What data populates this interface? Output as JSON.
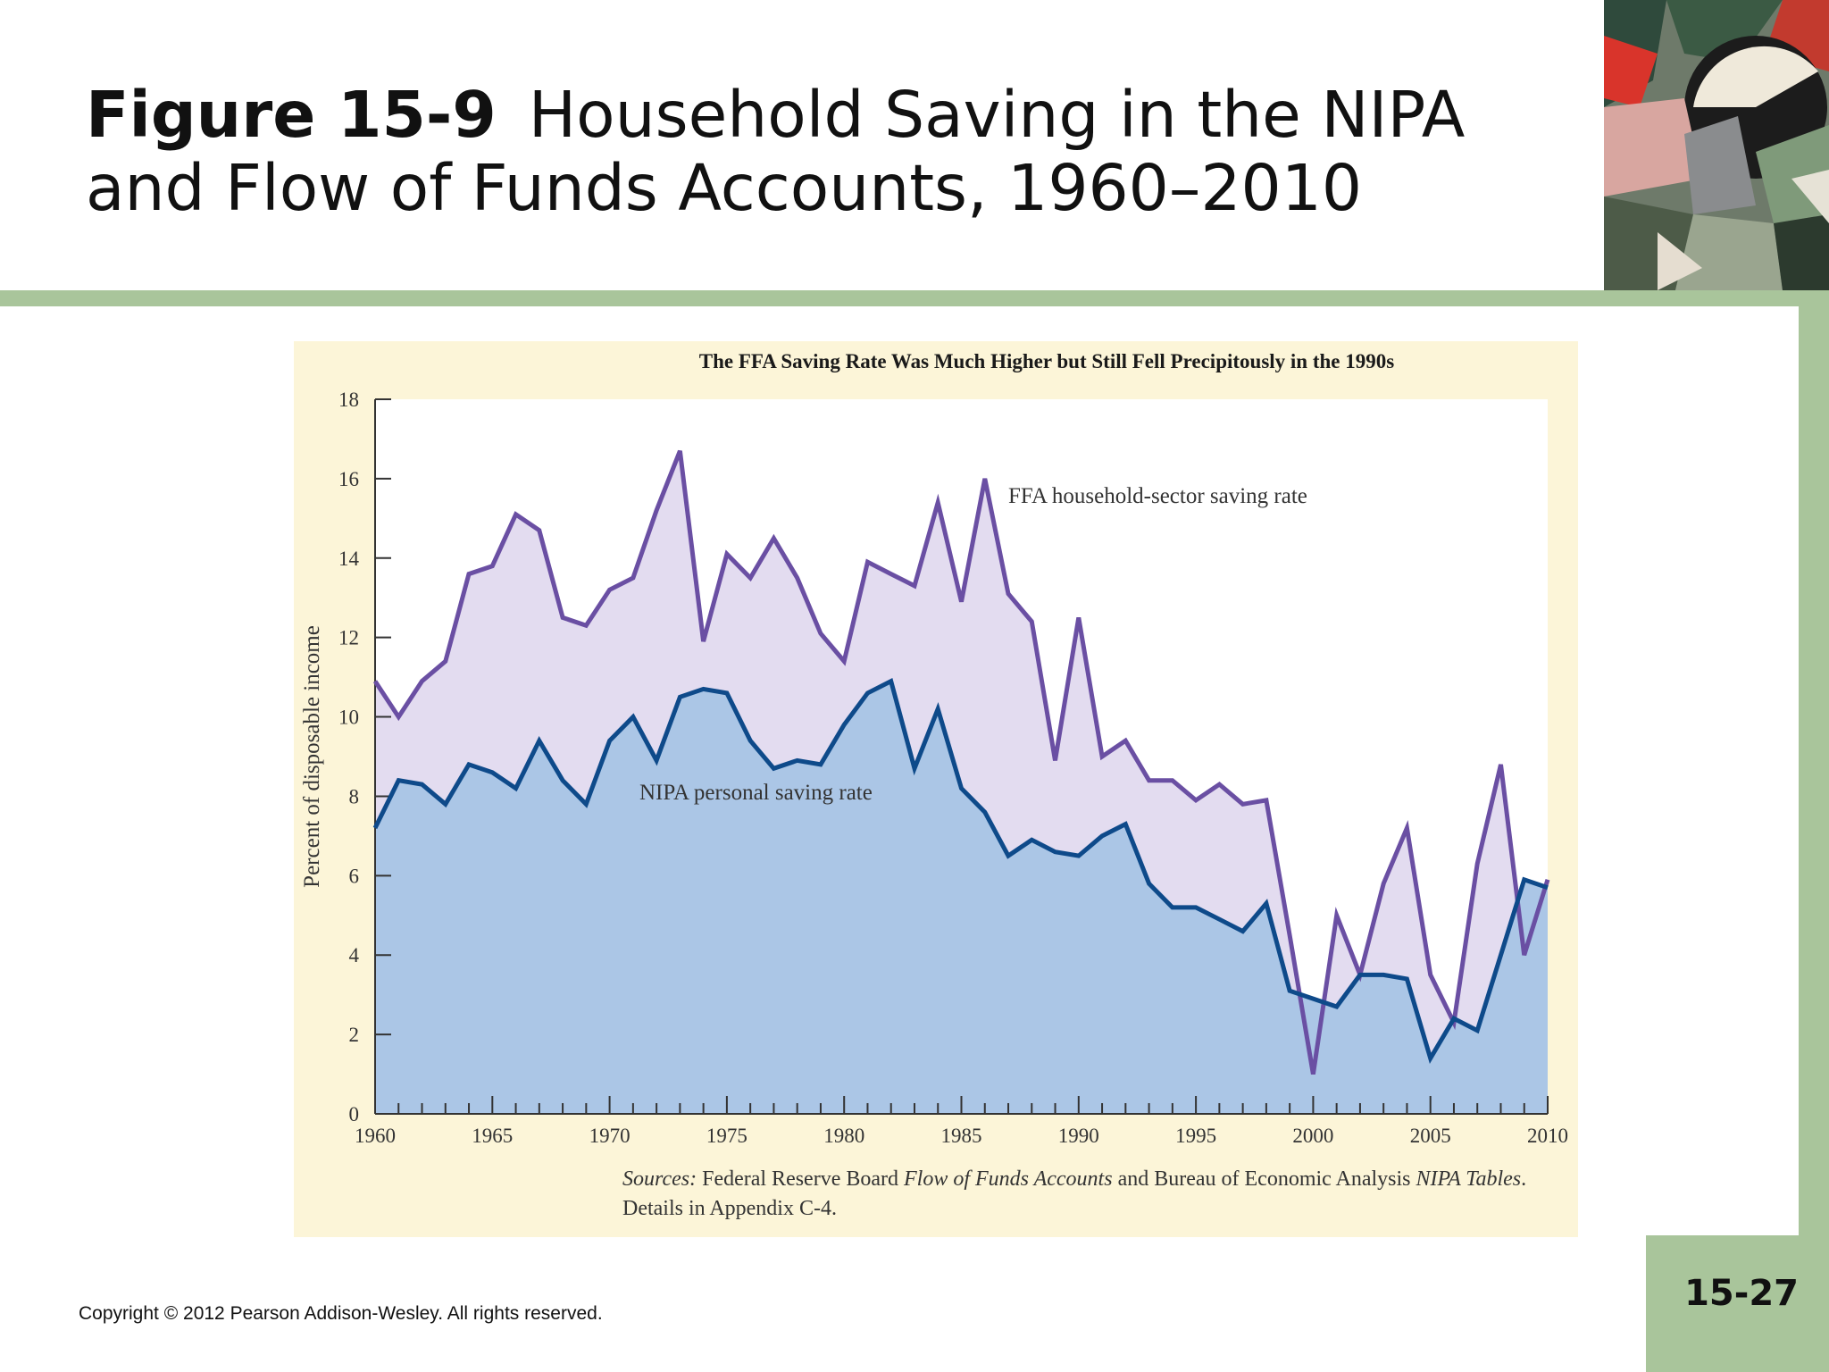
{
  "slide": {
    "figure_number": "Figure 15-9",
    "title_line1": "Household Saving in the NIPA",
    "title_line2": "and Flow of Funds Accounts, 1960–2010",
    "copyright": "Copyright © 2012 Pearson Addison-Wesley. All rights reserved.",
    "page_number": "15-27"
  },
  "colors": {
    "accent_green": "#a9c59b",
    "panel_background": "#fcf5d8",
    "ffa_line": "#6a4fa3",
    "ffa_fill": "#e3dcf0",
    "nipa_line": "#0e4a8a",
    "nipa_fill": "#abc6e6"
  },
  "chart_data": {
    "type": "area",
    "title": "The FFA Saving Rate Was Much Higher but Still Fell Precipitously in the 1990s",
    "xlabel": "",
    "ylabel": "Percent of disposable income",
    "xlim": [
      1960,
      2010
    ],
    "ylim": [
      0,
      18
    ],
    "x_ticks": [
      "1960",
      "1965",
      "1970",
      "1975",
      "1980",
      "1985",
      "1990",
      "1995",
      "2000",
      "2005",
      "2010"
    ],
    "y_ticks": [
      "0",
      "2",
      "4",
      "6",
      "8",
      "10",
      "12",
      "14",
      "16",
      "18"
    ],
    "grid": false,
    "x": [
      1960,
      1961,
      1962,
      1963,
      1964,
      1965,
      1966,
      1967,
      1968,
      1969,
      1970,
      1971,
      1972,
      1973,
      1974,
      1975,
      1976,
      1977,
      1978,
      1979,
      1980,
      1981,
      1982,
      1983,
      1984,
      1985,
      1986,
      1987,
      1988,
      1989,
      1990,
      1991,
      1992,
      1993,
      1994,
      1995,
      1996,
      1997,
      1998,
      1999,
      2000,
      2001,
      2002,
      2003,
      2004,
      2005,
      2006,
      2007,
      2008,
      2009,
      2010
    ],
    "series": [
      {
        "name": "FFA household-sector saving rate",
        "values": [
          10.9,
          10.0,
          10.9,
          11.4,
          13.6,
          13.8,
          15.1,
          14.7,
          12.5,
          12.3,
          13.2,
          13.5,
          15.2,
          16.7,
          11.9,
          14.1,
          13.5,
          14.5,
          13.5,
          12.1,
          11.4,
          13.9,
          13.6,
          13.3,
          15.4,
          12.9,
          16.0,
          13.1,
          12.4,
          8.9,
          12.5,
          9.0,
          9.4,
          8.4,
          8.4,
          7.9,
          8.3,
          7.8,
          7.9,
          4.5,
          1.0,
          5.0,
          3.5,
          5.8,
          7.2,
          3.5,
          2.3,
          6.3,
          8.8,
          4.0,
          5.9
        ]
      },
      {
        "name": "NIPA personal saving rate",
        "values": [
          7.2,
          8.4,
          8.3,
          7.8,
          8.8,
          8.6,
          8.2,
          9.4,
          8.4,
          7.8,
          9.4,
          10.0,
          8.9,
          10.5,
          10.7,
          10.6,
          9.4,
          8.7,
          8.9,
          8.8,
          9.8,
          10.6,
          10.9,
          8.7,
          10.2,
          8.2,
          7.6,
          6.5,
          6.9,
          6.6,
          6.5,
          7.0,
          7.3,
          5.8,
          5.2,
          5.2,
          4.9,
          4.6,
          5.3,
          3.1,
          2.9,
          2.7,
          3.5,
          3.5,
          3.4,
          1.4,
          2.4,
          2.1,
          4.0,
          5.9,
          5.7
        ]
      }
    ],
    "annotations": {
      "sources_label": "Sources:",
      "sources_part1": " Federal Reserve Board ",
      "sources_title1": "Flow of Funds Accounts",
      "sources_part2": " and Bureau of Economic Analysis ",
      "sources_title2": "NIPA Tables",
      "sources_part3": ". Details in Appendix C-4."
    }
  }
}
